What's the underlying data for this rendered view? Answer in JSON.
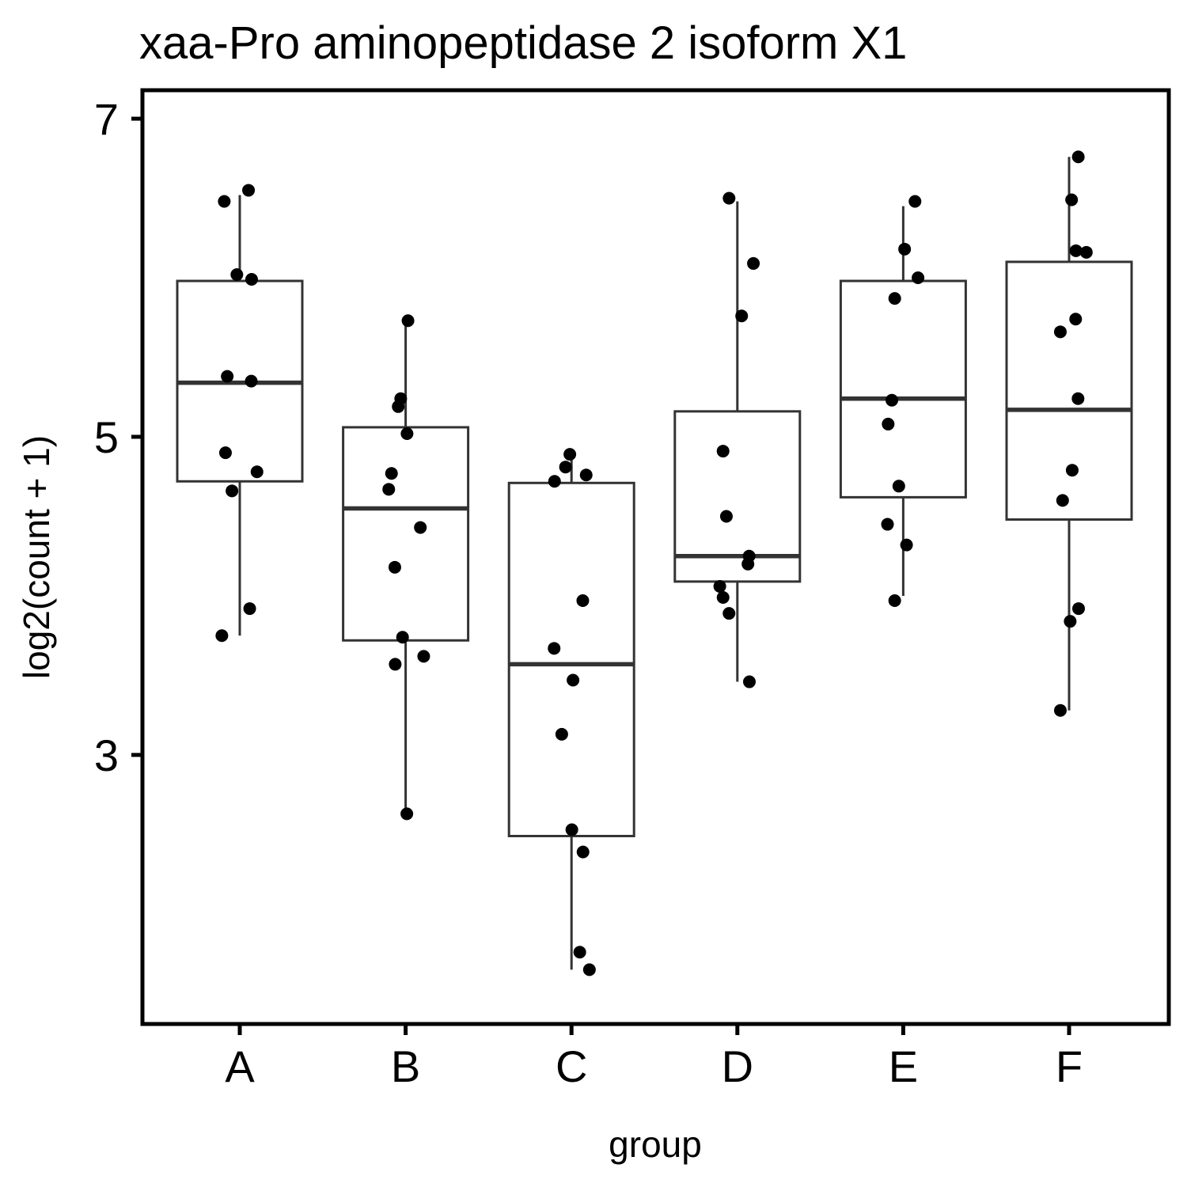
{
  "chart_data": {
    "type": "box",
    "title": "xaa-Pro aminopeptidase 2 isoform X1",
    "xlabel": "group",
    "ylabel": "log2(count + 1)",
    "ylim": [
      1.6,
      7.3
    ],
    "yticks": [
      3,
      5,
      7
    ],
    "categories": [
      "A",
      "B",
      "C",
      "D",
      "E",
      "F"
    ],
    "box_stats": [
      {
        "group": "A",
        "whisker_low": 3.75,
        "q1": 4.72,
        "median": 5.34,
        "q3": 5.98,
        "whisker_high": 6.52
      },
      {
        "group": "B",
        "whisker_low": 2.63,
        "q1": 3.72,
        "median": 4.55,
        "q3": 5.06,
        "whisker_high": 5.73
      },
      {
        "group": "C",
        "whisker_low": 1.65,
        "q1": 2.49,
        "median": 3.57,
        "q3": 4.71,
        "whisker_high": 4.89
      },
      {
        "group": "D",
        "whisker_low": 3.46,
        "q1": 4.09,
        "median": 4.25,
        "q3": 5.16,
        "whisker_high": 6.48
      },
      {
        "group": "E",
        "whisker_low": 4.0,
        "q1": 4.62,
        "median": 5.24,
        "q3": 5.98,
        "whisker_high": 6.45
      },
      {
        "group": "F",
        "whisker_low": 3.28,
        "q1": 4.48,
        "median": 5.17,
        "q3": 6.1,
        "whisker_high": 6.76
      }
    ],
    "points": [
      {
        "group": "A",
        "values": [
          6.55,
          6.48,
          6.02,
          5.99,
          5.38,
          5.35,
          4.9,
          4.78,
          4.66,
          3.92,
          3.75
        ]
      },
      {
        "group": "B",
        "values": [
          5.73,
          5.24,
          5.19,
          5.02,
          4.77,
          4.67,
          4.43,
          4.18,
          3.74,
          3.62,
          3.57,
          2.63
        ]
      },
      {
        "group": "C",
        "values": [
          4.89,
          4.81,
          4.76,
          4.72,
          3.97,
          3.67,
          3.47,
          3.13,
          2.53,
          2.39,
          1.76,
          1.65
        ]
      },
      {
        "group": "D",
        "values": [
          6.5,
          6.09,
          5.76,
          4.91,
          4.5,
          4.25,
          4.2,
          4.06,
          3.99,
          3.89,
          3.46
        ]
      },
      {
        "group": "E",
        "values": [
          6.48,
          6.18,
          6.0,
          5.87,
          5.23,
          5.08,
          4.69,
          4.45,
          4.32,
          3.97
        ]
      },
      {
        "group": "F",
        "values": [
          6.76,
          6.49,
          6.17,
          6.16,
          5.74,
          5.66,
          5.24,
          4.79,
          4.6,
          3.92,
          3.84,
          3.28
        ]
      }
    ]
  }
}
